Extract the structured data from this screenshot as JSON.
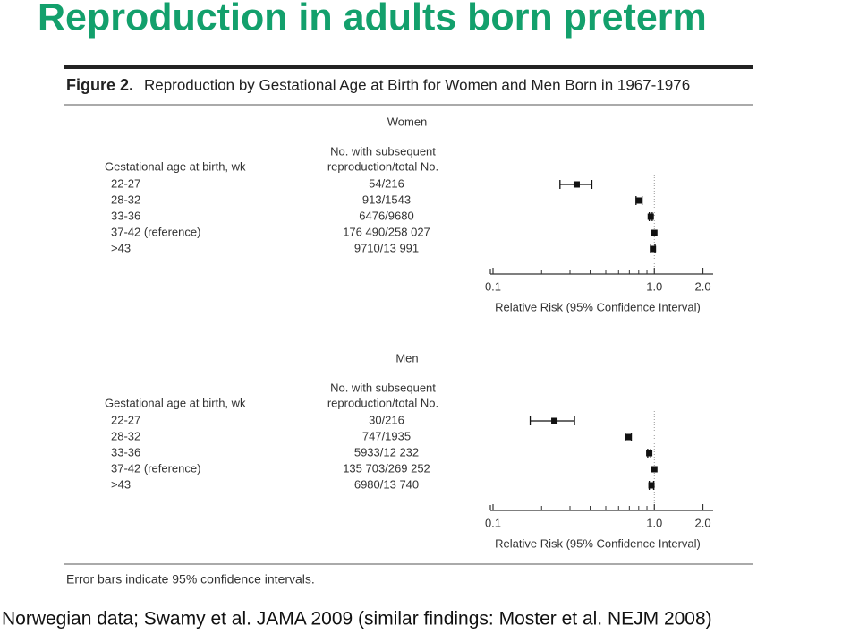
{
  "slide_title": "Reproduction in adults born preterm",
  "figure_title": "Figure 2.",
  "figure_subtitle": "Reproduction by Gestational Age at Birth for Women and Men Born in 1967-1976",
  "footnote": "Error bars indicate 95% confidence intervals.",
  "source": "Norwegian data; Swamy et al. JAMA 2009 (similar findings: Moster et al. NEJM 2008)",
  "chart_data": [
    {
      "type": "forest",
      "title": "Women",
      "row_header": "Gestational age at birth, wk",
      "count_header": [
        "No. with subsequent",
        "reproduction/total No."
      ],
      "categories": [
        "22-27",
        "28-32",
        "33-36",
        "37-42 (reference)",
        ">43"
      ],
      "counts": [
        "54/216",
        "913/1543",
        "6476/9680",
        "176 490/258 027",
        "9710/13 991"
      ],
      "values": [
        0.33,
        0.8,
        0.95,
        1.0,
        0.98
      ],
      "ci_low": [
        0.26,
        0.77,
        0.93,
        null,
        0.95
      ],
      "ci_high": [
        0.41,
        0.84,
        0.97,
        null,
        1.01
      ],
      "log_x": true,
      "reference": 1,
      "xlim": [
        0.1,
        2.2
      ],
      "xticks": [
        0.1,
        {
          "value": 1,
          "label": "1.0"
        },
        {
          "value": 2,
          "label": "2.0"
        }
      ],
      "xminor": [
        0.2,
        0.3,
        0.4,
        0.5,
        0.6,
        0.7,
        0.8,
        0.9
      ],
      "xlabel": "Relative Risk (95% Confidence Interval)",
      "color": "#111111"
    },
    {
      "type": "forest",
      "title": "Men",
      "row_header": "Gestational age at birth, wk",
      "count_header": [
        "No. with subsequent",
        "reproduction/total No."
      ],
      "categories": [
        "22-27",
        "28-32",
        "33-36",
        "37-42 (reference)",
        ">43"
      ],
      "counts": [
        "30/216",
        "747/1935",
        "5933/12 232",
        "135 703/269 252",
        "6980/13 740"
      ],
      "values": [
        0.24,
        0.69,
        0.93,
        1.0,
        0.96
      ],
      "ci_low": [
        0.17,
        0.66,
        0.91,
        null,
        0.93
      ],
      "ci_high": [
        0.32,
        0.72,
        0.95,
        null,
        0.99
      ],
      "log_x": true,
      "reference": 1,
      "xlim": [
        0.1,
        2.2
      ],
      "xticks": [
        0.1,
        {
          "value": 1,
          "label": "1.0"
        },
        {
          "value": 2,
          "label": "2.0"
        }
      ],
      "xminor": [
        0.2,
        0.3,
        0.4,
        0.5,
        0.6,
        0.7,
        0.8,
        0.9
      ],
      "xlabel": "Relative Risk (95% Confidence Interval)",
      "color": "#111111"
    }
  ]
}
